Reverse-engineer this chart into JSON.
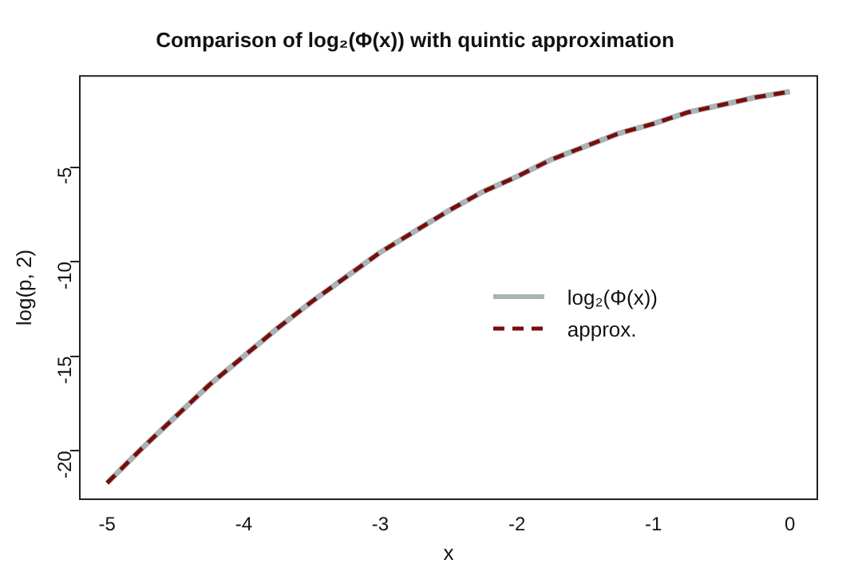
{
  "chart_data": {
    "type": "line",
    "title": "Comparison of log₂(Φ(x)) with quintic approximation",
    "xlabel": "x",
    "ylabel": "log(p, 2)",
    "x": [
      -5,
      -4.75,
      -4.5,
      -4.25,
      -4,
      -3.75,
      -3.5,
      -3.25,
      -3,
      -2.75,
      -2.5,
      -2.25,
      -2,
      -1.75,
      -1.5,
      -1.25,
      -1,
      -0.75,
      -0.5,
      -0.25,
      0
    ],
    "series": [
      {
        "name": "log₂(Φ(x))",
        "color": "#a9b4b4",
        "line_style": "solid",
        "values": [
          -21.7,
          -19.9,
          -18.2,
          -16.5,
          -15.0,
          -13.5,
          -12.1,
          -10.8,
          -9.5,
          -8.4,
          -7.3,
          -6.3,
          -5.5,
          -4.6,
          -3.9,
          -3.2,
          -2.7,
          -2.1,
          -1.7,
          -1.3,
          -1.0
        ]
      },
      {
        "name": "approx.",
        "color": "#7b0c0c",
        "line_style": "dashed",
        "values": [
          -21.7,
          -19.9,
          -18.2,
          -16.5,
          -15.0,
          -13.5,
          -12.1,
          -10.8,
          -9.5,
          -8.4,
          -7.3,
          -6.3,
          -5.5,
          -4.6,
          -3.9,
          -3.2,
          -2.7,
          -2.1,
          -1.7,
          -1.3,
          -1.0
        ]
      }
    ],
    "xlim": [
      -5.2,
      0.2
    ],
    "xticks": [
      -5,
      -4,
      -3,
      -2,
      -1,
      0
    ],
    "ylim": [
      -22.56,
      -0.17
    ],
    "yticks": [
      -20,
      -15,
      -10,
      -5
    ],
    "grid": false,
    "legend": "right",
    "marker": "none"
  }
}
